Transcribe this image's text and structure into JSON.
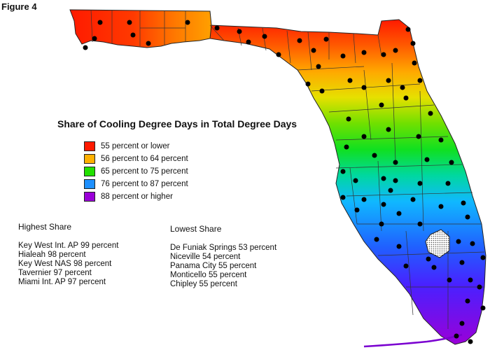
{
  "figure_label": "Figure 4",
  "legend": {
    "title": "Share of Cooling Degree Days in Total Degree Days",
    "items": [
      {
        "label": "55 percent or lower",
        "color": "#ff1a00"
      },
      {
        "label": "56 percent to 64 percent",
        "color": "#ffb000"
      },
      {
        "label": "65 percent to 75 percent",
        "color": "#22e000"
      },
      {
        "label": "76 percent to 87 percent",
        "color": "#1e90ff"
      },
      {
        "label": "88 percent or higher",
        "color": "#9a00d8"
      }
    ]
  },
  "highest_share": {
    "heading": "Highest Share",
    "items": [
      "Key West Int. AP 99 percent",
      "Hialeah 98 percent",
      "Key West NAS 98 percent",
      "Tavernier 97 percent",
      "Miami Int. AP 97 percent"
    ]
  },
  "lowest_share": {
    "heading": "Lowest Share",
    "items": [
      "De Funiak Springs 53 percent",
      "Niceville 54 percent",
      "Panama City 55 percent",
      "Monticello 55 percent",
      "Chipley 55 percent"
    ]
  }
}
